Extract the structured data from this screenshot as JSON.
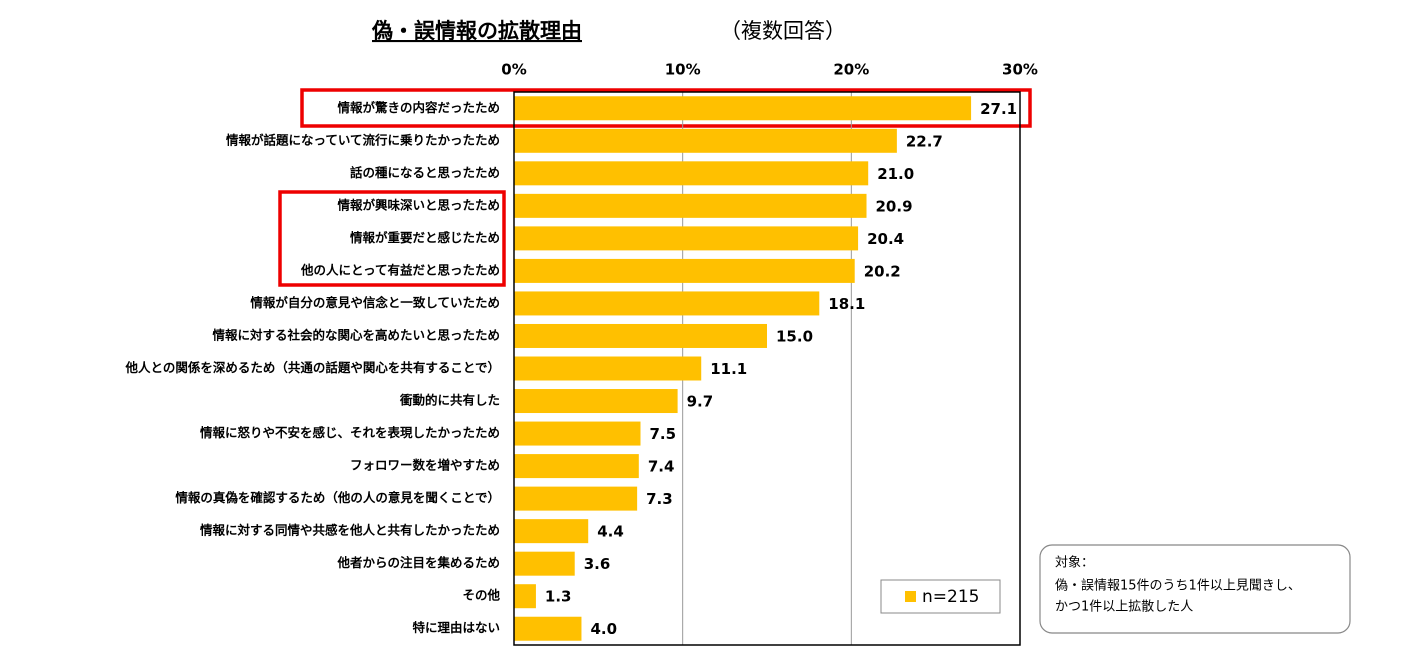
{
  "chart_data": {
    "type": "bar",
    "orientation": "horizontal",
    "title": "偽・誤情報の拡散理由",
    "subtitle": "（複数回答）",
    "categories": [
      "情報が驚きの内容だったため",
      "情報が話題になっていて流行に乗りたかったため",
      "話の種になると思ったため",
      "情報が興味深いと思ったため",
      "情報が重要だと感じたため",
      "他の人にとって有益だと思ったため",
      "情報が自分の意見や信念と一致していたため",
      "情報に対する社会的な関心を高めたいと思ったため",
      "他人との関係を深めるため（共通の話題や関心を共有することで）",
      "衝動的に共有した",
      "情報に怒りや不安を感じ、それを表現したかったため",
      "フォロワー数を増やすため",
      "情報の真偽を確認するため（他の人の意見を聞くことで）",
      "情報に対する同情や共感を他人と共有したかったため",
      "他者からの注目を集めるため",
      "その他",
      "特に理由はない"
    ],
    "series": [
      {
        "name": "n=215",
        "color": "#FFC000",
        "values": [
          27.1,
          22.7,
          21.0,
          20.9,
          20.4,
          20.2,
          18.1,
          15.0,
          11.1,
          9.7,
          7.5,
          7.4,
          7.3,
          4.4,
          3.6,
          1.3,
          4.0
        ],
        "value_labels": [
          "27.1",
          "22.7",
          "21.0",
          "20.9",
          "20.4",
          "20.2",
          "18.1",
          "15.0",
          "11.1",
          "9.7",
          "7.5",
          "7.4",
          "7.3",
          "4.4",
          "3.6",
          "1.3",
          "4.0"
        ]
      }
    ],
    "xlim": [
      0,
      30
    ],
    "xticks": [
      {
        "value": 0,
        "label": "0%"
      },
      {
        "value": 10,
        "label": "10%"
      },
      {
        "value": 20,
        "label": "20%"
      },
      {
        "value": 30,
        "label": "30%"
      }
    ],
    "grid": true,
    "annotations": [
      "対象：",
      "偽・誤情報15件のうち1件以上見聞きし、",
      "かつ1件以上拡散した人"
    ]
  }
}
